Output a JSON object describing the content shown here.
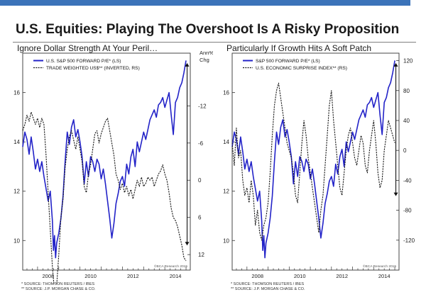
{
  "page": {
    "title": "U.S. Equities: Playing The Overshoot Is A Risky Proposition",
    "accent_color": "#3b73b9"
  },
  "chart_data": [
    {
      "type": "line",
      "title": "Ignore Dollar Strength At Your Peril…",
      "ylabel_right": "Ann%\nChg",
      "credit": "©BCA Research 2015",
      "x_ticks": [
        "2008",
        "2010",
        "2012",
        "2014"
      ],
      "xlim": [
        2007.3,
        2015.2
      ],
      "y_left": {
        "ticks": [
          10,
          12,
          14,
          16
        ],
        "lim": [
          8.8,
          17.6
        ]
      },
      "y_right": {
        "ticks": [
          -12,
          -6,
          0,
          6,
          12
        ],
        "lim": [
          -20.5,
          14.5
        ],
        "inverted": true
      },
      "footnotes": [
        "*  SOURCE: THOMSON REUTERS / IBES",
        "**  SOURCE: J.P. MORGAN CHASE & CO."
      ],
      "arrow": {
        "x": 2015.05,
        "y_from": 17.2,
        "y_to": 9.8
      },
      "series": [
        {
          "name": "U.S. S&P 500 FORWARD P/E* (LS)",
          "axis": "left",
          "color": "#2323c8",
          "x": [
            2007.3,
            2007.4,
            2007.5,
            2007.6,
            2007.7,
            2007.8,
            2007.9,
            2008.0,
            2008.1,
            2008.2,
            2008.3,
            2008.4,
            2008.5,
            2008.6,
            2008.7,
            2008.75,
            2008.8,
            2008.85,
            2008.9,
            2009.0,
            2009.1,
            2009.2,
            2009.3,
            2009.4,
            2009.5,
            2009.6,
            2009.7,
            2009.8,
            2009.9,
            2010.0,
            2010.1,
            2010.2,
            2010.3,
            2010.4,
            2010.5,
            2010.6,
            2010.7,
            2010.8,
            2010.9,
            2011.0,
            2011.1,
            2011.2,
            2011.3,
            2011.4,
            2011.5,
            2011.6,
            2011.7,
            2011.8,
            2011.9,
            2012.0,
            2012.1,
            2012.2,
            2012.3,
            2012.4,
            2012.5,
            2012.6,
            2012.7,
            2012.8,
            2012.9,
            2013.0,
            2013.1,
            2013.2,
            2013.3,
            2013.4,
            2013.5,
            2013.6,
            2013.7,
            2013.8,
            2013.9,
            2014.0,
            2014.1,
            2014.2,
            2014.3,
            2014.4,
            2014.5,
            2014.6,
            2014.7,
            2014.8,
            2014.9,
            2015.0
          ],
          "values": [
            13.8,
            14.4,
            14.1,
            13.5,
            14.2,
            13.6,
            12.9,
            13.3,
            12.8,
            13.2,
            12.6,
            12.1,
            11.6,
            12.0,
            10.8,
            9.6,
            10.2,
            9.3,
            9.9,
            10.3,
            10.9,
            11.8,
            13.2,
            14.4,
            13.9,
            14.6,
            14.9,
            14.2,
            14.5,
            14.0,
            13.4,
            12.3,
            13.2,
            12.6,
            13.4,
            13.2,
            12.8,
            13.3,
            13.1,
            12.5,
            12.9,
            12.3,
            11.6,
            10.9,
            10.1,
            10.7,
            11.5,
            11.9,
            12.4,
            12.6,
            12.2,
            13.1,
            12.7,
            13.4,
            13.7,
            13.0,
            14.0,
            13.6,
            14.0,
            14.4,
            14.1,
            14.5,
            14.9,
            15.1,
            15.3,
            15.0,
            15.5,
            15.6,
            15.8,
            15.4,
            15.7,
            16.0,
            15.1,
            14.3,
            15.6,
            15.8,
            16.2,
            16.4,
            16.8,
            17.3
          ]
        },
        {
          "name": "TRADE WEIGHTED US$** (INVERTED, RS)",
          "axis": "right",
          "color": "#1a1a1a",
          "dashed": true,
          "x": [
            2007.3,
            2007.4,
            2007.5,
            2007.6,
            2007.7,
            2007.8,
            2007.9,
            2008.0,
            2008.1,
            2008.2,
            2008.3,
            2008.4,
            2008.5,
            2008.6,
            2008.7,
            2008.8,
            2008.9,
            2009.0,
            2009.1,
            2009.2,
            2009.3,
            2009.4,
            2009.5,
            2009.6,
            2009.7,
            2009.8,
            2009.9,
            2010.0,
            2010.1,
            2010.2,
            2010.3,
            2010.4,
            2010.5,
            2010.6,
            2010.7,
            2010.8,
            2010.9,
            2011.0,
            2011.1,
            2011.2,
            2011.3,
            2011.4,
            2011.5,
            2011.6,
            2011.7,
            2011.8,
            2011.9,
            2012.0,
            2012.1,
            2012.2,
            2012.3,
            2012.4,
            2012.5,
            2012.6,
            2012.7,
            2012.8,
            2012.9,
            2013.0,
            2013.1,
            2013.2,
            2013.3,
            2013.4,
            2013.5,
            2013.6,
            2013.7,
            2013.8,
            2013.9,
            2014.0,
            2014.1,
            2014.2,
            2014.3,
            2014.4,
            2014.5,
            2014.6,
            2014.7,
            2014.8,
            2014.9,
            2015.0
          ],
          "values": [
            -8.0,
            -9.0,
            -10.5,
            -9.5,
            -11.0,
            -10.0,
            -9.0,
            -10.0,
            -8.5,
            -10.0,
            -9.0,
            -4.0,
            2.0,
            8.0,
            14.0,
            18.0,
            17.0,
            12.0,
            6.0,
            3.0,
            -2.0,
            -5.0,
            -7.0,
            -8.0,
            -6.5,
            -5.0,
            -7.0,
            -5.0,
            -3.0,
            1.0,
            2.0,
            -1.0,
            -2.5,
            -5.0,
            -7.5,
            -8.0,
            -6.0,
            -7.5,
            -8.5,
            -9.5,
            -10.0,
            -8.0,
            -6.0,
            -4.0,
            -1.0,
            0.0,
            1.5,
            0.5,
            2.0,
            1.0,
            2.5,
            1.5,
            3.0,
            1.5,
            0.0,
            1.0,
            -0.5,
            1.0,
            0.5,
            -0.5,
            0.0,
            -0.5,
            1.0,
            0.0,
            -1.0,
            -1.5,
            -2.5,
            -1.0,
            0.0,
            2.0,
            4.5,
            6.0,
            6.5,
            7.5,
            9.0,
            10.5,
            12.5,
            13.0
          ]
        }
      ]
    },
    {
      "type": "line",
      "title": "Particularly If Growth Hits A Soft Patch",
      "credit": "©BCA Research 2015",
      "x_ticks": [
        "2008",
        "2010",
        "2012",
        "2014"
      ],
      "xlim": [
        2007.3,
        2015.2
      ],
      "y_left": {
        "ticks": [
          10,
          12,
          14,
          16
        ],
        "lim": [
          8.8,
          17.6
        ]
      },
      "y_right": {
        "ticks": [
          -120,
          -80,
          -40,
          0,
          40,
          80,
          120
        ],
        "lim": [
          -160,
          130
        ]
      },
      "footnotes": [
        "*  SOURCE: THOMSON REUTERS / IBES",
        "**  SOURCE: J.P. MORGAN CHASE & CO."
      ],
      "arrow": {
        "x": 2015.05,
        "y_from": 17.2,
        "y_to": 11.8
      },
      "series": [
        {
          "name": "S&P 500 FORWARD P/E* (LS)",
          "axis": "left",
          "color": "#2323c8",
          "x": [
            2007.3,
            2007.4,
            2007.5,
            2007.6,
            2007.7,
            2007.8,
            2007.9,
            2008.0,
            2008.1,
            2008.2,
            2008.3,
            2008.4,
            2008.5,
            2008.6,
            2008.7,
            2008.75,
            2008.8,
            2008.85,
            2008.9,
            2009.0,
            2009.1,
            2009.2,
            2009.3,
            2009.4,
            2009.5,
            2009.6,
            2009.7,
            2009.8,
            2009.9,
            2010.0,
            2010.1,
            2010.2,
            2010.3,
            2010.4,
            2010.5,
            2010.6,
            2010.7,
            2010.8,
            2010.9,
            2011.0,
            2011.1,
            2011.2,
            2011.3,
            2011.4,
            2011.5,
            2011.6,
            2011.7,
            2011.8,
            2011.9,
            2012.0,
            2012.1,
            2012.2,
            2012.3,
            2012.4,
            2012.5,
            2012.6,
            2012.7,
            2012.8,
            2012.9,
            2013.0,
            2013.1,
            2013.2,
            2013.3,
            2013.4,
            2013.5,
            2013.6,
            2013.7,
            2013.8,
            2013.9,
            2014.0,
            2014.1,
            2014.2,
            2014.3,
            2014.4,
            2014.5,
            2014.6,
            2014.7,
            2014.8,
            2014.9,
            2015.0
          ],
          "values": [
            13.8,
            14.4,
            14.1,
            13.5,
            14.2,
            13.6,
            12.9,
            13.3,
            12.8,
            13.2,
            12.6,
            12.1,
            11.6,
            12.0,
            10.8,
            9.6,
            10.2,
            9.3,
            9.9,
            10.3,
            10.9,
            11.8,
            13.2,
            14.4,
            13.9,
            14.6,
            14.9,
            14.2,
            14.5,
            14.0,
            13.4,
            12.3,
            13.2,
            12.6,
            13.4,
            13.2,
            12.8,
            13.3,
            13.1,
            12.5,
            12.9,
            12.3,
            11.6,
            10.9,
            10.1,
            10.7,
            11.5,
            11.9,
            12.4,
            12.6,
            12.2,
            13.1,
            12.7,
            13.4,
            13.7,
            13.0,
            14.0,
            13.6,
            14.0,
            14.4,
            14.1,
            14.5,
            14.9,
            15.1,
            15.3,
            15.0,
            15.5,
            15.6,
            15.8,
            15.4,
            15.7,
            16.0,
            15.1,
            14.3,
            15.6,
            15.8,
            16.2,
            16.4,
            16.8,
            17.3
          ]
        },
        {
          "name": "U.S. ECONOMIC SURPRISE INDEX** (RS)",
          "axis": "right",
          "color": "#1a1a1a",
          "dashed": true,
          "x": [
            2007.3,
            2007.4,
            2007.5,
            2007.6,
            2007.7,
            2007.8,
            2007.9,
            2008.0,
            2008.1,
            2008.2,
            2008.3,
            2008.4,
            2008.5,
            2008.6,
            2008.7,
            2008.8,
            2008.9,
            2009.0,
            2009.1,
            2009.2,
            2009.3,
            2009.4,
            2009.5,
            2009.6,
            2009.7,
            2009.8,
            2009.9,
            2010.0,
            2010.1,
            2010.2,
            2010.3,
            2010.4,
            2010.5,
            2010.6,
            2010.7,
            2010.8,
            2010.9,
            2011.0,
            2011.1,
            2011.2,
            2011.3,
            2011.4,
            2011.5,
            2011.6,
            2011.7,
            2011.8,
            2011.9,
            2012.0,
            2012.1,
            2012.2,
            2012.3,
            2012.4,
            2012.5,
            2012.6,
            2012.7,
            2012.8,
            2012.9,
            2013.0,
            2013.1,
            2013.2,
            2013.3,
            2013.4,
            2013.5,
            2013.6,
            2013.7,
            2013.8,
            2013.9,
            2014.0,
            2014.1,
            2014.2,
            2014.3,
            2014.4,
            2014.5,
            2014.6,
            2014.7,
            2014.8,
            2014.9,
            2015.0
          ],
          "values": [
            10,
            -20,
            30,
            -10,
            0,
            -40,
            -60,
            -50,
            -70,
            -40,
            -60,
            -100,
            -80,
            -110,
            -120,
            -100,
            -90,
            -70,
            -30,
            20,
            60,
            80,
            90,
            70,
            50,
            30,
            10,
            0,
            -10,
            -30,
            -60,
            -70,
            -30,
            10,
            40,
            20,
            -10,
            -30,
            -50,
            -70,
            -90,
            -110,
            -80,
            -60,
            -20,
            20,
            60,
            80,
            40,
            10,
            -20,
            -50,
            -60,
            -30,
            0,
            20,
            30,
            10,
            -10,
            -20,
            0,
            20,
            10,
            -20,
            -30,
            0,
            20,
            40,
            10,
            -30,
            -50,
            -40,
            0,
            20,
            40,
            30,
            20,
            10
          ]
        }
      ]
    }
  ]
}
